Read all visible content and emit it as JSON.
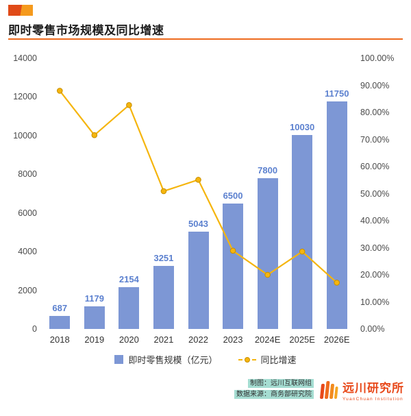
{
  "header": {
    "title": "即时零售市场规模及同比增速"
  },
  "chart_data": {
    "type": "bar+line combo",
    "categories": [
      "2018",
      "2019",
      "2020",
      "2021",
      "2022",
      "2023",
      "2024E",
      "2025E",
      "2026E"
    ],
    "series": [
      {
        "name": "即时零售规模（亿元）",
        "type": "bar",
        "axis": "left",
        "values": [
          687,
          1179,
          2154,
          3251,
          5043,
          6500,
          7800,
          10030,
          11750
        ]
      },
      {
        "name": "同比增速",
        "type": "line",
        "axis": "right",
        "values": [
          88.0,
          71.6,
          82.7,
          50.9,
          55.1,
          28.9,
          20.0,
          28.6,
          17.1
        ]
      }
    ],
    "bar_labels": [
      "687",
      "1179",
      "2154",
      "3251",
      "5043",
      "6500",
      "7800",
      "10030",
      "11750"
    ],
    "left_axis": {
      "min": 0,
      "max": 14000,
      "step": 2000,
      "ticks": [
        "0",
        "2000",
        "4000",
        "6000",
        "8000",
        "10000",
        "12000",
        "14000"
      ]
    },
    "right_axis": {
      "min": 0,
      "max": 100,
      "step": 10,
      "ticks": [
        "0.00%",
        "10.00%",
        "20.00%",
        "30.00%",
        "40.00%",
        "50.00%",
        "60.00%",
        "70.00%",
        "80.00%",
        "90.00%",
        "100.00%"
      ]
    },
    "grid": "off",
    "legend_position": "bottom"
  },
  "legend": {
    "bar_label": "即时零售规模（亿元）",
    "line_label": "同比增速"
  },
  "footer": {
    "credit": "制图：远川互联网组",
    "source": "数据来源：商务部研究院",
    "logo_text": "远川研究所",
    "logo_subtext": "YuanChuan Institution"
  },
  "colors": {
    "bar": "#7d97d5",
    "bar_label": "#5b80cf",
    "line": "#f5b50e",
    "line_marker_stroke": "#c78f00",
    "title_underline": "#ed6a1d",
    "accent": "#e04a18",
    "credit_highlight": "#a5ddd2",
    "logo": "#e8491a"
  }
}
